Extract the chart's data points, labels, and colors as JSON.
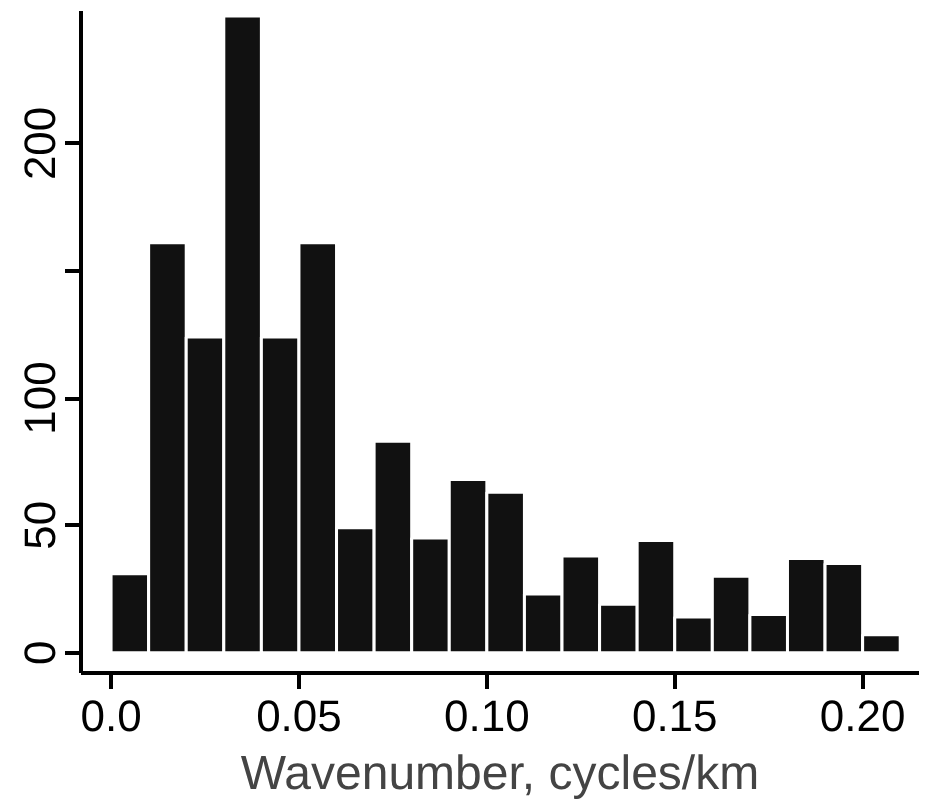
{
  "chart_data": {
    "type": "histogram",
    "xlabel": "Wavenumber, cycles/km",
    "bins": [
      0,
      0.01,
      0.02,
      0.03,
      0.04,
      0.05,
      0.06,
      0.07,
      0.08,
      0.09,
      0.1,
      0.11,
      0.12,
      0.13,
      0.14,
      0.15,
      0.16,
      0.17,
      0.18,
      0.19,
      0.2,
      0.21
    ],
    "values": [
      31,
      161,
      124,
      250,
      124,
      161,
      49,
      83,
      45,
      68,
      63,
      23,
      38,
      19,
      44,
      14,
      30,
      15,
      37,
      35,
      7
    ],
    "color": "#111111",
    "xlim": [
      -0.008,
      0.215
    ],
    "ylim": [
      -8,
      252
    ],
    "xticks": [
      {
        "value": 0,
        "label": "0.0"
      },
      0.05,
      {
        "value": 0.1,
        "label": "0.10"
      },
      0.15,
      {
        "value": 0.2,
        "label": "0.20"
      }
    ],
    "yticks": [
      0,
      50,
      100,
      {
        "value": 150,
        "label": null
      },
      200
    ],
    "grid": false
  }
}
